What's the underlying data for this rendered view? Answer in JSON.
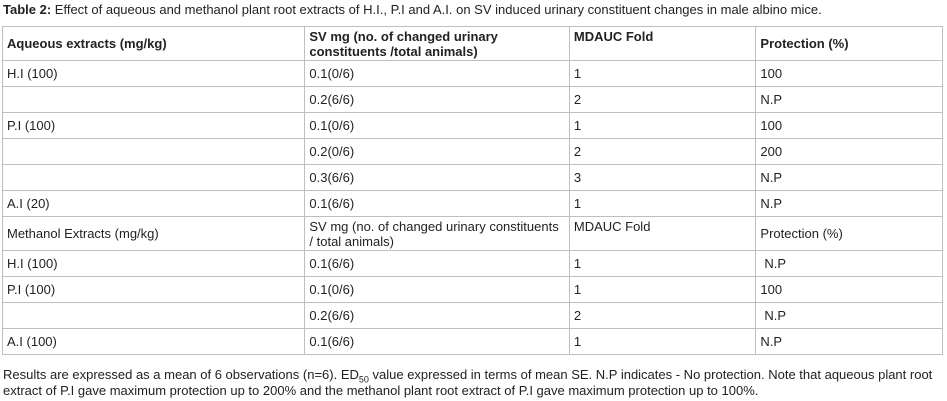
{
  "caption": {
    "label": "Table 2:",
    "text": " Effect of aqueous and methanol plant root extracts of H.I., P.I and A.I. on SV induced urinary constituent changes in male albino mice."
  },
  "table": {
    "header_aqueous": {
      "c1": "Aqueous extracts (mg/kg)",
      "c2": "SV mg (no. of changed urinary constituents /total animals)",
      "c3": "MDAUC Fold",
      "c4": "Protection (%)"
    },
    "aqueous_rows": [
      {
        "c1": "H.I (100)",
        "c2": "0.1(0/6)",
        "c3": "1",
        "c4": "100"
      },
      {
        "c1": "",
        "c2": "0.2(6/6)",
        "c3": "2",
        "c4": "N.P"
      },
      {
        "c1": "P.I (100)",
        "c2": "0.1(0/6)",
        "c3": "1",
        "c4": "100"
      },
      {
        "c1": "",
        "c2": "0.2(0/6)",
        "c3": "2",
        "c4": "200"
      },
      {
        "c1": "",
        "c2": "0.3(6/6)",
        "c3": "3",
        "c4": "N.P"
      },
      {
        "c1": "A.I (20)",
        "c2": "0.1(6/6)",
        "c3": "1",
        "c4": "N.P"
      }
    ],
    "header_methanol": {
      "c1": "Methanol Extracts (mg/kg)",
      "c2": "SV mg (no. of changed urinary constituents / total animals)",
      "c3": "MDAUC Fold",
      "c4": "Protection (%)"
    },
    "methanol_rows": [
      {
        "c1": "H.I (100)",
        "c2": "0.1(6/6)",
        "c3": "1",
        "c4": "N.P"
      },
      {
        "c1": "P.I (100)",
        "c2": "0.1(0/6)",
        "c3": "1",
        "c4": "100"
      },
      {
        "c1": "",
        "c2": "0.2(6/6)",
        "c3": "2",
        "c4": "N.P"
      },
      {
        "c1": "A.I (100)",
        "c2": "0.1(6/6)",
        "c3": "1",
        "c4": "N.P"
      }
    ]
  },
  "note": {
    "part1": "Results are expressed as a mean of 6 observations (n=6). ED",
    "sub": "50",
    "part2": " value expressed in terms of mean SE. N.P indicates - No protection. Note that aqueous plant root extract of P.I gave maximum protection up to 200% and the methanol plant root extract of P.I gave maximum protection up to 100%."
  }
}
